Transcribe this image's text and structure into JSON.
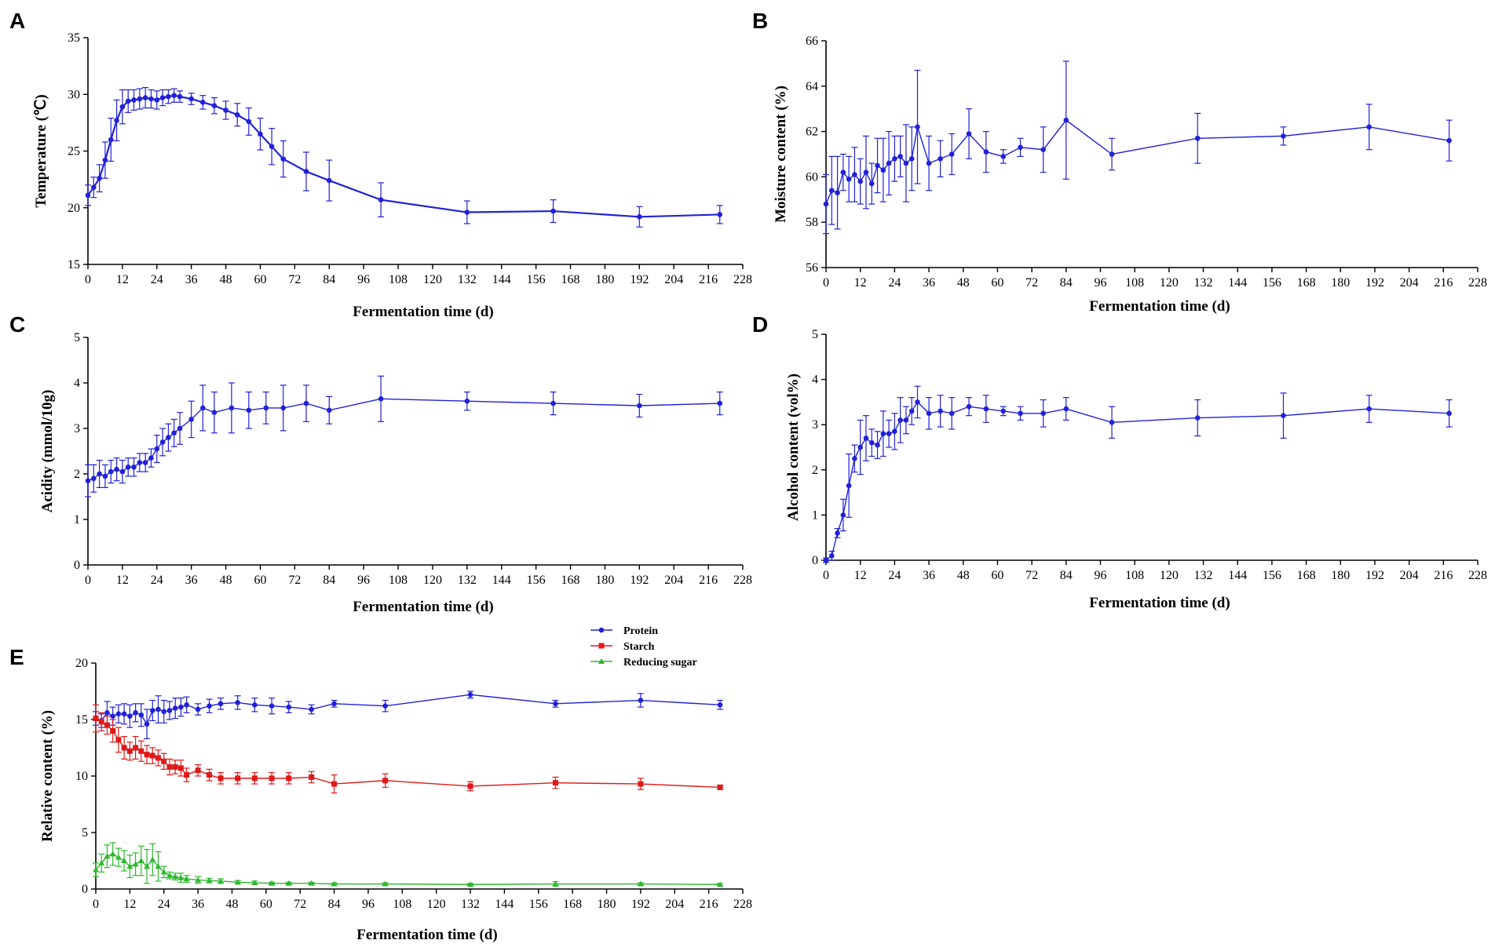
{
  "chart_data": [
    {
      "panel": "A",
      "type": "line",
      "xlabel": "Fermentation time (d)",
      "ylabel": "Temperature (℃)",
      "xlim": [
        0,
        228
      ],
      "ylim": [
        15,
        35
      ],
      "xticks": [
        0,
        12,
        24,
        36,
        48,
        60,
        72,
        84,
        96,
        108,
        120,
        132,
        144,
        156,
        168,
        180,
        192,
        204,
        216,
        228
      ],
      "yticks": [
        15,
        20,
        25,
        30,
        35
      ],
      "series": [
        {
          "name": "Temperature",
          "color": "#2121d8",
          "marker": "circle",
          "x": [
            0,
            2,
            4,
            6,
            8,
            10,
            12,
            14,
            16,
            18,
            20,
            22,
            24,
            26,
            28,
            30,
            32,
            36,
            40,
            44,
            48,
            52,
            56,
            60,
            64,
            68,
            76,
            84,
            102,
            132,
            162,
            192,
            220
          ],
          "y": [
            21.1,
            21.8,
            22.6,
            24.2,
            26.0,
            27.7,
            28.9,
            29.4,
            29.5,
            29.6,
            29.7,
            29.6,
            29.5,
            29.7,
            29.8,
            29.9,
            29.8,
            29.6,
            29.3,
            29.0,
            28.6,
            28.2,
            27.6,
            26.5,
            25.4,
            24.3,
            23.2,
            22.4,
            20.7,
            19.6,
            19.7,
            19.2,
            19.4
          ],
          "err": [
            0.9,
            0.9,
            1.2,
            1.6,
            1.9,
            1.8,
            1.5,
            1.0,
            0.9,
            0.9,
            0.9,
            0.8,
            0.8,
            0.7,
            0.6,
            0.6,
            0.5,
            0.5,
            0.6,
            0.7,
            0.8,
            1.0,
            1.2,
            1.4,
            1.6,
            1.6,
            1.7,
            1.8,
            1.5,
            1.0,
            1.0,
            0.9,
            0.8
          ]
        }
      ]
    },
    {
      "panel": "B",
      "type": "line",
      "xlabel": "Fermentation time (d)",
      "ylabel": "Moisture content (%)",
      "xlim": [
        0,
        228
      ],
      "ylim": [
        56,
        66
      ],
      "xticks": [
        0,
        12,
        24,
        36,
        48,
        60,
        72,
        84,
        96,
        108,
        120,
        132,
        144,
        156,
        168,
        180,
        192,
        204,
        216,
        228
      ],
      "yticks": [
        56,
        58,
        60,
        62,
        64,
        66
      ],
      "series": [
        {
          "name": "Moisture content",
          "color": "#2121d8",
          "marker": "circle",
          "x": [
            0,
            2,
            4,
            6,
            8,
            10,
            12,
            14,
            16,
            18,
            20,
            22,
            24,
            26,
            28,
            30,
            32,
            36,
            40,
            44,
            50,
            56,
            62,
            68,
            76,
            84,
            100,
            130,
            160,
            190,
            218
          ],
          "y": [
            58.8,
            59.4,
            59.3,
            60.2,
            59.9,
            60.1,
            59.8,
            60.2,
            59.7,
            60.5,
            60.3,
            60.6,
            60.8,
            60.9,
            60.6,
            60.8,
            62.2,
            60.6,
            60.8,
            61.0,
            61.9,
            61.1,
            60.9,
            61.3,
            61.2,
            62.5,
            61.0,
            61.7,
            61.8,
            62.2,
            61.6
          ],
          "err": [
            1.3,
            1.5,
            1.6,
            0.8,
            1.0,
            1.2,
            1.0,
            1.6,
            0.9,
            1.2,
            1.4,
            1.4,
            1.0,
            0.9,
            1.7,
            1.4,
            2.5,
            1.2,
            0.8,
            0.9,
            1.1,
            0.9,
            0.3,
            0.4,
            1.0,
            2.6,
            0.7,
            1.1,
            0.4,
            1.0,
            0.9
          ]
        }
      ]
    },
    {
      "panel": "C",
      "type": "line",
      "xlabel": "Fermentation time (d)",
      "ylabel": "Acidity (mmol/10g)",
      "xlim": [
        0,
        228
      ],
      "ylim": [
        0,
        5
      ],
      "xticks": [
        0,
        12,
        24,
        36,
        48,
        60,
        72,
        84,
        96,
        108,
        120,
        132,
        144,
        156,
        168,
        180,
        192,
        204,
        216,
        228
      ],
      "yticks": [
        0,
        1,
        2,
        3,
        4,
        5
      ],
      "series": [
        {
          "name": "Acidity",
          "color": "#2121d8",
          "marker": "circle",
          "x": [
            0,
            2,
            4,
            6,
            8,
            10,
            12,
            14,
            16,
            18,
            20,
            22,
            24,
            26,
            28,
            30,
            32,
            36,
            40,
            44,
            50,
            56,
            62,
            68,
            76,
            84,
            102,
            132,
            162,
            192,
            220
          ],
          "y": [
            1.85,
            1.9,
            2.0,
            1.95,
            2.05,
            2.1,
            2.05,
            2.15,
            2.15,
            2.25,
            2.25,
            2.35,
            2.55,
            2.7,
            2.8,
            2.9,
            3.0,
            3.2,
            3.45,
            3.35,
            3.45,
            3.4,
            3.45,
            3.45,
            3.55,
            3.4,
            3.65,
            3.6,
            3.55,
            3.5,
            3.55
          ],
          "err": [
            0.35,
            0.3,
            0.3,
            0.25,
            0.25,
            0.25,
            0.25,
            0.2,
            0.2,
            0.2,
            0.2,
            0.2,
            0.3,
            0.3,
            0.3,
            0.3,
            0.35,
            0.4,
            0.5,
            0.45,
            0.55,
            0.4,
            0.35,
            0.5,
            0.4,
            0.3,
            0.5,
            0.2,
            0.25,
            0.25,
            0.25
          ]
        }
      ]
    },
    {
      "panel": "D",
      "type": "line",
      "xlabel": "Fermentation time (d)",
      "ylabel": "Alcohol content (vol%)",
      "xlim": [
        0,
        228
      ],
      "ylim": [
        0,
        5
      ],
      "xticks": [
        0,
        12,
        24,
        36,
        48,
        60,
        72,
        84,
        96,
        108,
        120,
        132,
        144,
        156,
        168,
        180,
        192,
        204,
        216,
        228
      ],
      "yticks": [
        0,
        1,
        2,
        3,
        4,
        5
      ],
      "series": [
        {
          "name": "Alcohol content",
          "color": "#2121d8",
          "marker": "circle",
          "x": [
            0,
            2,
            4,
            6,
            8,
            10,
            12,
            14,
            16,
            18,
            20,
            22,
            24,
            26,
            28,
            30,
            32,
            36,
            40,
            44,
            50,
            56,
            62,
            68,
            76,
            84,
            100,
            130,
            160,
            190,
            218
          ],
          "y": [
            0.0,
            0.1,
            0.6,
            1.0,
            1.65,
            2.25,
            2.5,
            2.7,
            2.6,
            2.55,
            2.8,
            2.8,
            2.85,
            3.1,
            3.1,
            3.3,
            3.5,
            3.25,
            3.3,
            3.25,
            3.4,
            3.35,
            3.3,
            3.25,
            3.25,
            3.35,
            3.05,
            3.15,
            3.2,
            3.35,
            3.25
          ],
          "err": [
            0.05,
            0.1,
            0.1,
            0.35,
            0.7,
            0.3,
            0.6,
            0.5,
            0.3,
            0.3,
            0.5,
            0.3,
            0.4,
            0.5,
            0.3,
            0.3,
            0.35,
            0.35,
            0.35,
            0.35,
            0.2,
            0.3,
            0.1,
            0.15,
            0.3,
            0.25,
            0.35,
            0.4,
            0.5,
            0.3,
            0.3
          ]
        }
      ]
    },
    {
      "panel": "E",
      "type": "line",
      "xlabel": "Fermentation time (d)",
      "ylabel": "Relative content (%)",
      "xlim": [
        0,
        228
      ],
      "ylim": [
        0,
        20
      ],
      "xticks": [
        0,
        12,
        24,
        36,
        48,
        60,
        72,
        84,
        96,
        108,
        120,
        132,
        144,
        156,
        168,
        180,
        192,
        204,
        216,
        228
      ],
      "yticks": [
        0,
        5,
        10,
        15,
        20
      ],
      "legend": "top-center",
      "series": [
        {
          "name": "Protein",
          "color": "#2121d8",
          "marker": "circle",
          "x": [
            0,
            2,
            4,
            6,
            8,
            10,
            12,
            14,
            16,
            18,
            20,
            22,
            24,
            26,
            28,
            30,
            32,
            36,
            40,
            44,
            50,
            56,
            62,
            68,
            76,
            84,
            102,
            132,
            162,
            192,
            220
          ],
          "y": [
            15.1,
            14.9,
            15.6,
            15.3,
            15.5,
            15.5,
            15.3,
            15.6,
            15.4,
            14.6,
            15.8,
            15.9,
            15.7,
            15.8,
            16.0,
            16.1,
            16.3,
            15.9,
            16.2,
            16.4,
            16.5,
            16.3,
            16.2,
            16.1,
            15.9,
            16.4,
            16.2,
            17.2,
            16.4,
            16.7,
            16.3
          ],
          "err": [
            0.6,
            0.6,
            1.0,
            0.8,
            0.8,
            0.9,
            1.0,
            0.8,
            1.0,
            1.3,
            0.9,
            1.2,
            1.0,
            0.8,
            0.9,
            0.8,
            0.7,
            0.5,
            0.6,
            0.5,
            0.6,
            0.6,
            0.7,
            0.5,
            0.4,
            0.3,
            0.5,
            0.3,
            0.3,
            0.6,
            0.4
          ]
        },
        {
          "name": "Starch",
          "color": "#e01818",
          "marker": "square",
          "x": [
            0,
            2,
            4,
            6,
            8,
            10,
            12,
            14,
            16,
            18,
            20,
            22,
            24,
            26,
            28,
            30,
            32,
            36,
            40,
            44,
            50,
            56,
            62,
            68,
            76,
            84,
            102,
            132,
            162,
            192,
            220
          ],
          "y": [
            15.1,
            14.8,
            14.5,
            14.0,
            13.2,
            12.5,
            12.2,
            12.5,
            12.2,
            11.9,
            11.8,
            11.6,
            11.3,
            10.8,
            10.8,
            10.7,
            10.1,
            10.5,
            10.1,
            9.8,
            9.8,
            9.8,
            9.8,
            9.8,
            9.9,
            9.3,
            9.6,
            9.1,
            9.4,
            9.3,
            9.0
          ],
          "err": [
            1.2,
            0.8,
            0.8,
            1.0,
            1.1,
            1.0,
            0.8,
            1.0,
            0.9,
            0.8,
            0.7,
            0.7,
            0.7,
            0.7,
            0.6,
            0.7,
            0.6,
            0.5,
            0.5,
            0.5,
            0.5,
            0.5,
            0.5,
            0.5,
            0.5,
            0.8,
            0.6,
            0.4,
            0.5,
            0.5,
            0.2
          ]
        },
        {
          "name": "Reducing sugar",
          "color": "#2eb82e",
          "marker": "triangle",
          "x": [
            0,
            2,
            4,
            6,
            8,
            10,
            12,
            14,
            16,
            18,
            20,
            22,
            24,
            26,
            28,
            30,
            32,
            36,
            40,
            44,
            50,
            56,
            62,
            68,
            76,
            84,
            102,
            132,
            162,
            192,
            220
          ],
          "y": [
            1.7,
            2.3,
            2.9,
            3.1,
            2.8,
            2.5,
            2.0,
            2.2,
            2.5,
            2.0,
            2.6,
            2.0,
            1.5,
            1.2,
            1.1,
            1.0,
            0.9,
            0.8,
            0.75,
            0.7,
            0.6,
            0.55,
            0.5,
            0.5,
            0.5,
            0.45,
            0.45,
            0.4,
            0.45,
            0.45,
            0.4
          ],
          "err": [
            0.6,
            0.8,
            1.0,
            1.0,
            0.8,
            0.9,
            1.0,
            1.0,
            1.3,
            1.5,
            1.4,
            1.3,
            0.5,
            0.3,
            0.3,
            0.4,
            0.3,
            0.3,
            0.2,
            0.2,
            0.15,
            0.15,
            0.1,
            0.1,
            0.1,
            0.1,
            0.1,
            0.1,
            0.2,
            0.1,
            0.1
          ]
        }
      ]
    }
  ]
}
